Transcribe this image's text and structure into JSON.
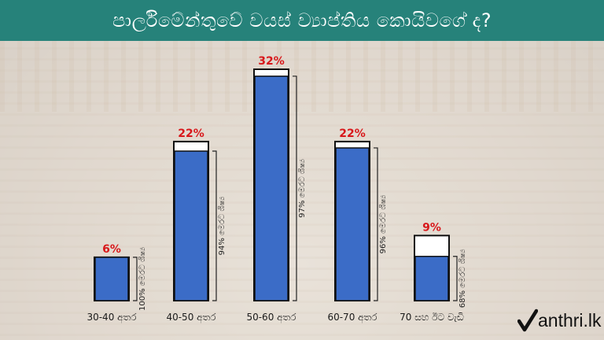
{
  "header": {
    "title": "පාර්ලිමේන්තුවේ වයස් ව්‍යාප්තිය කොයිවගේ ද?"
  },
  "logo": {
    "text": "anthri.lk"
  },
  "colors": {
    "bar": "#3b6cc7",
    "percent_label": "#d8181b",
    "header": "#26827a"
  },
  "chart_data": {
    "type": "bar",
    "title": "පාර්ලිමේන්තුවේ වයස් ව්‍යාප්තිය කොයිවගේ ද?",
    "categories": [
      "30-40 අතර",
      "40-50 අතර",
      "50-60 අතර",
      "60-70 අතර",
      "70 සහ ඊට වැඩි"
    ],
    "values": [
      6,
      22,
      32,
      22,
      9
    ],
    "value_labels": [
      "6%",
      "22%",
      "32%",
      "22%",
      "9%"
    ],
    "sub_share": [
      100,
      94,
      97,
      96,
      68
    ],
    "sub_labels": [
      "100% මෙරට ශිෂ්‍ය",
      "94% මෙරට ශිෂ්‍ය",
      "97% මෙරට ශිෂ්‍ය",
      "96% මෙරට ශිෂ්‍ය",
      "68% මෙරට ශිෂ්‍ය"
    ],
    "ylim": [
      0,
      32
    ],
    "grid": false,
    "legend": "none"
  }
}
